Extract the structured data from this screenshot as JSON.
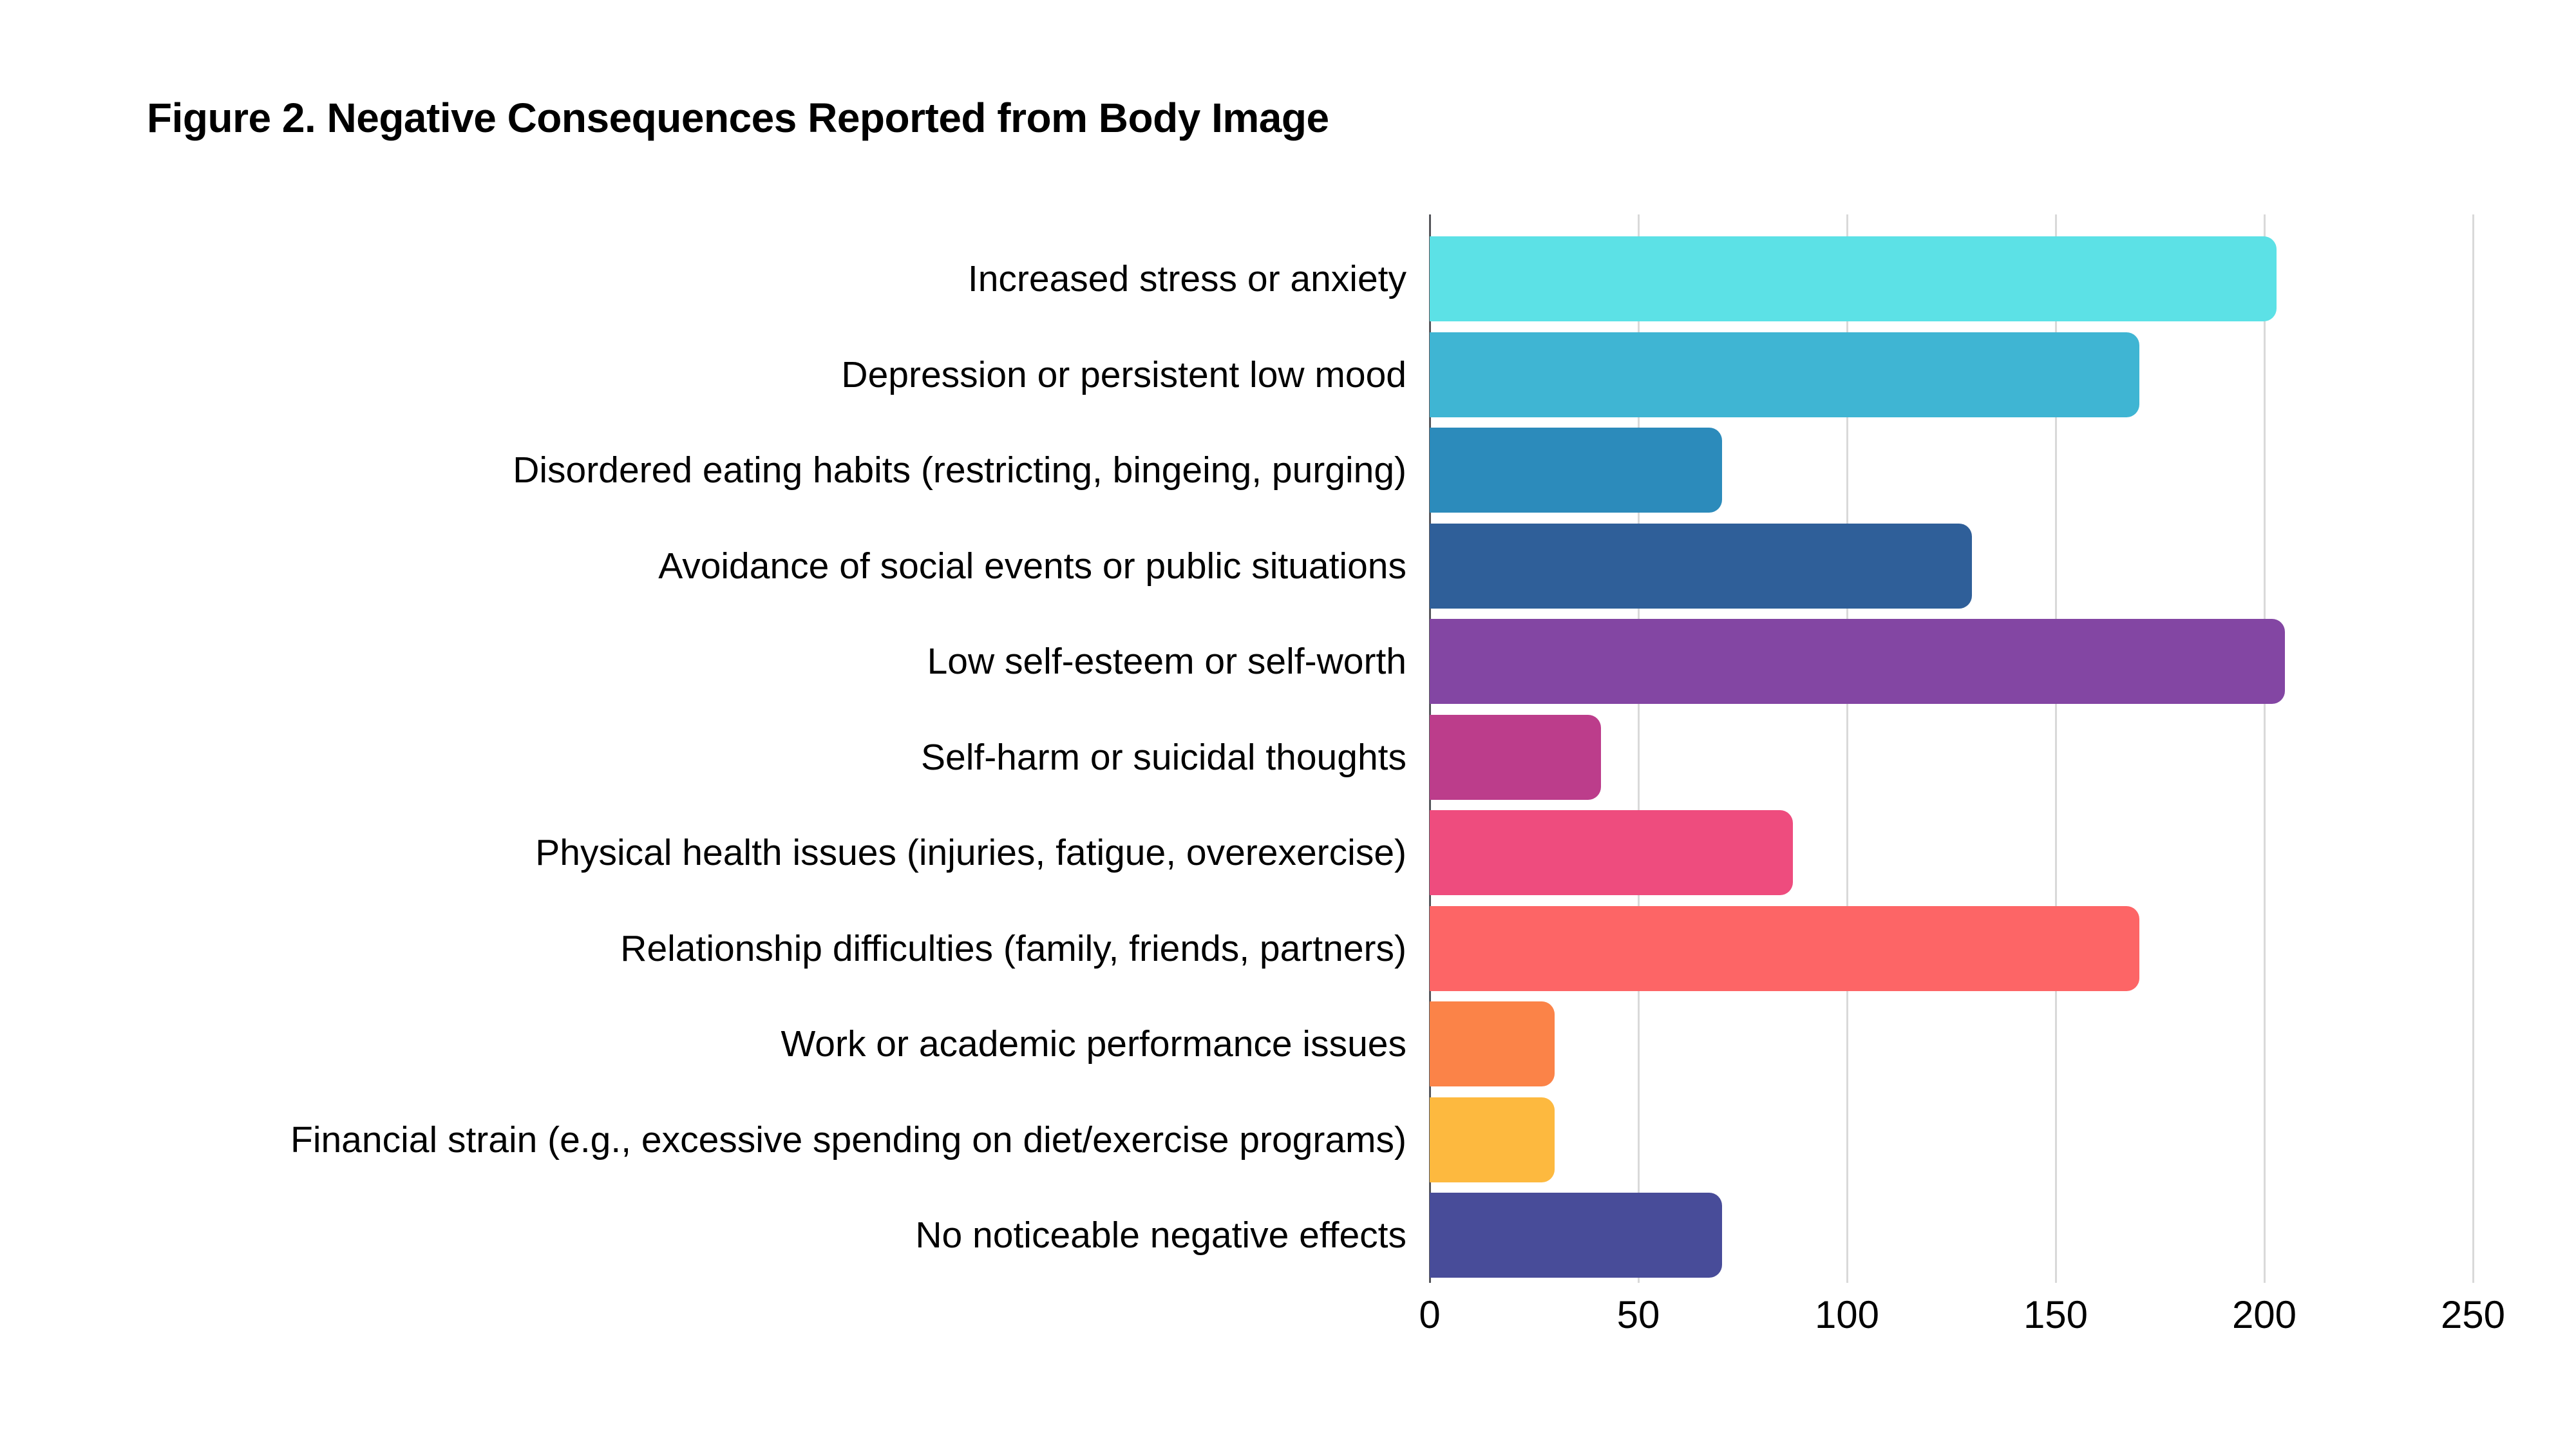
{
  "chart_data": {
    "type": "bar",
    "orientation": "horizontal",
    "title": "Figure 2. Negative Consequences Reported from Body Image",
    "categories": [
      "Increased stress or anxiety",
      "Depression or persistent low mood",
      "Disordered eating habits (restricting, bingeing, purging)",
      "Avoidance of social events or public situations",
      "Low self-esteem or self-worth",
      "Self-harm or suicidal thoughts",
      "Physical health issues (injuries, fatigue, overexercise)",
      "Relationship difficulties (family, friends, partners)",
      "Work or academic performance issues",
      "Financial strain (e.g., excessive spending on diet/exercise programs)",
      "No noticeable negative effects"
    ],
    "values": [
      203,
      170,
      70,
      130,
      205,
      41,
      87,
      170,
      30,
      30,
      70
    ],
    "bar_colors": [
      "#5ce1e6",
      "#3fb5d3",
      "#2c8bbb",
      "#2f5f99",
      "#8346a3",
      "#bc3d8b",
      "#ee4c7e",
      "#fd6566",
      "#fb8348",
      "#fdb93f",
      "#484c99"
    ],
    "xlabel": "",
    "ylabel": "",
    "xlim": [
      0,
      250
    ],
    "x_ticks": [
      0,
      50,
      100,
      150,
      200,
      250
    ],
    "grid": "vertical",
    "legend": "none",
    "gridline_color": "#d9d9d9",
    "axis_line_color": "#55565b",
    "background_color": "#ffffff",
    "text_color": "#000000"
  }
}
